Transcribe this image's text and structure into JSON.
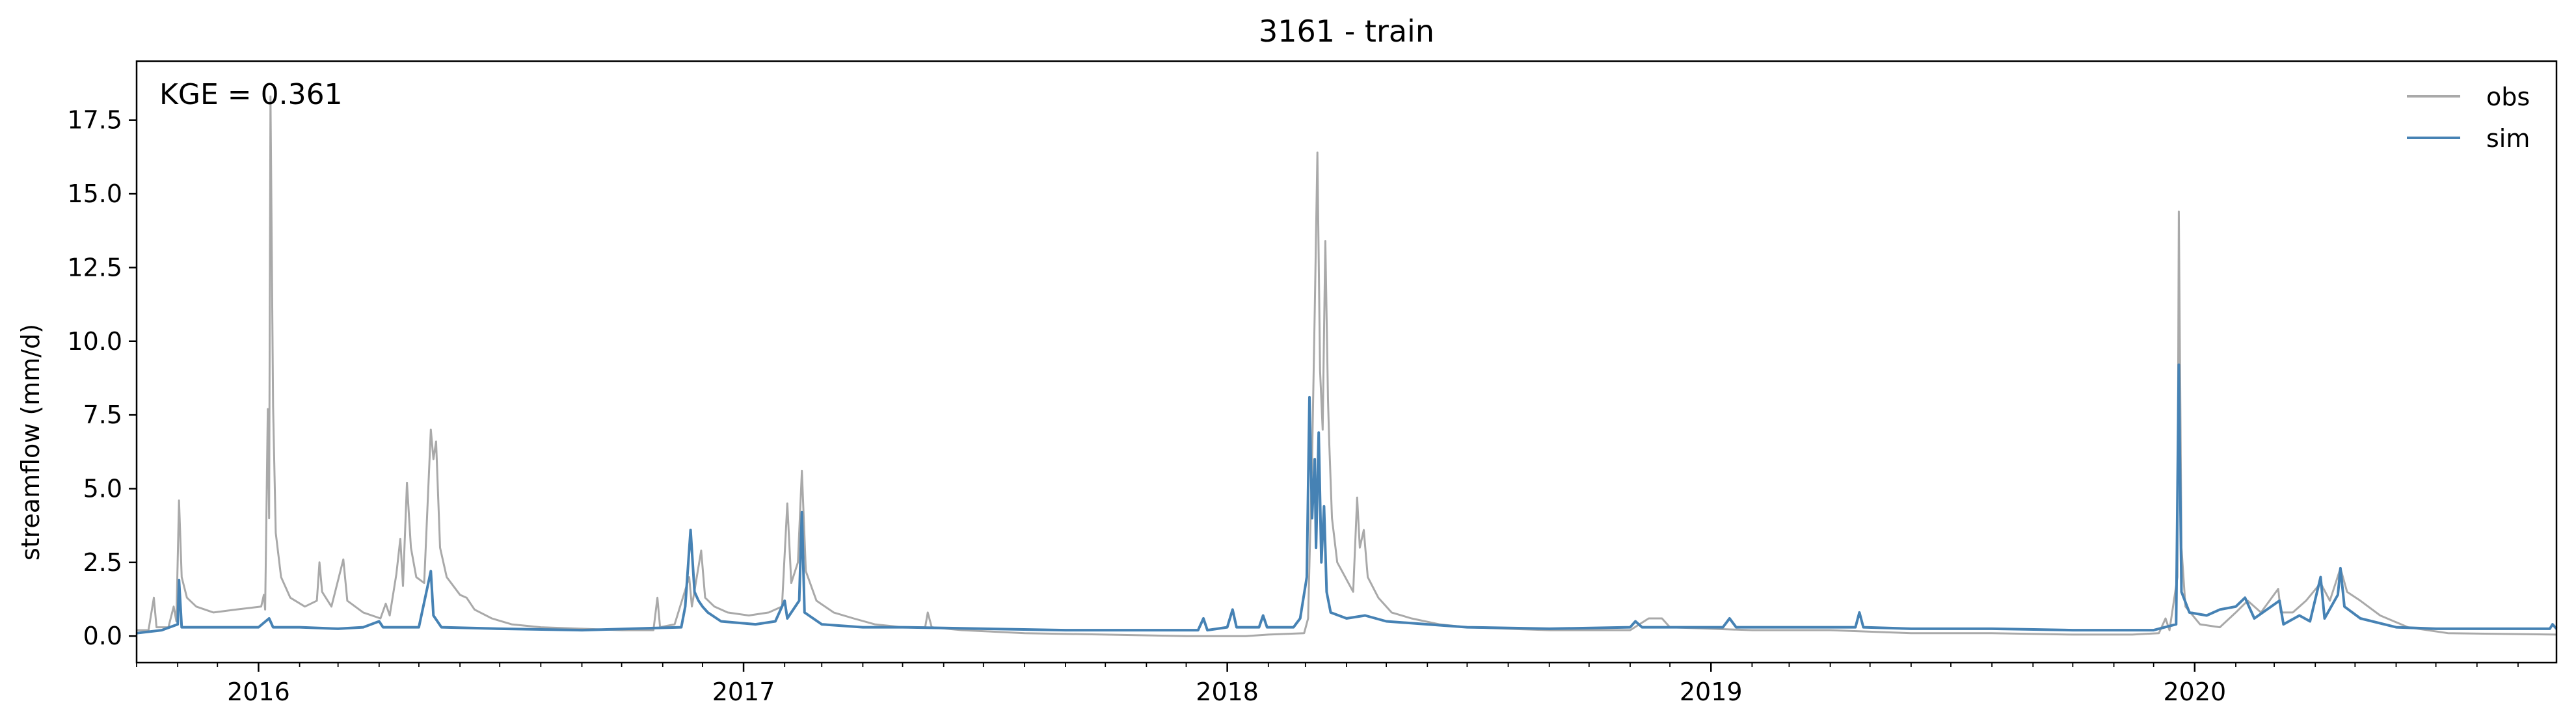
{
  "chart_data": {
    "type": "line",
    "title": "3161 - train",
    "xlabel": "",
    "ylabel": "streamflow (mm/d)",
    "annotation": "KGE = 0.361",
    "xlim": [
      "2015-10-01",
      "2020-09-30"
    ],
    "ylim": [
      -0.9,
      19.5
    ],
    "x_ticks": [
      "2016",
      "2017",
      "2018",
      "2019",
      "2020"
    ],
    "y_ticks": [
      "0.0",
      "2.5",
      "5.0",
      "7.5",
      "10.0",
      "12.5",
      "15.0",
      "17.5"
    ],
    "grid": false,
    "legend_position": "top-right",
    "legend": [
      "obs",
      "sim"
    ],
    "series": [
      {
        "name": "obs",
        "color": "#a9a9a9",
        "points": [
          [
            "2015-10-01",
            0.2
          ],
          [
            "2015-10-10",
            0.2
          ],
          [
            "2015-10-14",
            1.3
          ],
          [
            "2015-10-16",
            0.3
          ],
          [
            "2015-10-25",
            0.3
          ],
          [
            "2015-10-29",
            1.0
          ],
          [
            "2015-10-31",
            0.5
          ],
          [
            "2015-11-02",
            4.6
          ],
          [
            "2015-11-04",
            2.0
          ],
          [
            "2015-11-08",
            1.3
          ],
          [
            "2015-11-15",
            1.0
          ],
          [
            "2015-11-28",
            0.8
          ],
          [
            "2015-12-15",
            0.9
          ],
          [
            "2016-01-03",
            1.0
          ],
          [
            "2016-01-05",
            1.4
          ],
          [
            "2016-01-06",
            0.9
          ],
          [
            "2016-01-08",
            7.7
          ],
          [
            "2016-01-09",
            4.0
          ],
          [
            "2016-01-10",
            18.3
          ],
          [
            "2016-01-12",
            7.8
          ],
          [
            "2016-01-14",
            3.5
          ],
          [
            "2016-01-18",
            2.0
          ],
          [
            "2016-01-25",
            1.3
          ],
          [
            "2016-02-05",
            1.0
          ],
          [
            "2016-02-14",
            1.2
          ],
          [
            "2016-02-16",
            2.5
          ],
          [
            "2016-02-18",
            1.5
          ],
          [
            "2016-02-25",
            1.0
          ],
          [
            "2016-03-05",
            2.6
          ],
          [
            "2016-03-08",
            1.2
          ],
          [
            "2016-03-20",
            0.8
          ],
          [
            "2016-04-02",
            0.6
          ],
          [
            "2016-04-06",
            1.1
          ],
          [
            "2016-04-09",
            0.7
          ],
          [
            "2016-04-14",
            2.1
          ],
          [
            "2016-04-17",
            3.3
          ],
          [
            "2016-04-19",
            1.7
          ],
          [
            "2016-04-22",
            5.2
          ],
          [
            "2016-04-25",
            3.0
          ],
          [
            "2016-04-29",
            2.0
          ],
          [
            "2016-05-05",
            1.8
          ],
          [
            "2016-05-10",
            7.0
          ],
          [
            "2016-05-12",
            6.0
          ],
          [
            "2016-05-14",
            6.6
          ],
          [
            "2016-05-17",
            3.0
          ],
          [
            "2016-05-22",
            2.0
          ],
          [
            "2016-06-01",
            1.4
          ],
          [
            "2016-06-06",
            1.3
          ],
          [
            "2016-06-12",
            0.9
          ],
          [
            "2016-06-25",
            0.6
          ],
          [
            "2016-07-10",
            0.4
          ],
          [
            "2016-08-01",
            0.3
          ],
          [
            "2016-09-01",
            0.25
          ],
          [
            "2016-10-01",
            0.2
          ],
          [
            "2016-10-25",
            0.2
          ],
          [
            "2016-10-28",
            1.3
          ],
          [
            "2016-10-30",
            0.3
          ],
          [
            "2016-11-10",
            0.4
          ],
          [
            "2016-11-21",
            2.0
          ],
          [
            "2016-11-23",
            1.0
          ],
          [
            "2016-11-30",
            2.9
          ],
          [
            "2016-12-03",
            1.3
          ],
          [
            "2016-12-10",
            1.0
          ],
          [
            "2016-12-20",
            0.8
          ],
          [
            "2017-01-05",
            0.7
          ],
          [
            "2017-01-20",
            0.8
          ],
          [
            "2017-01-30",
            1.0
          ],
          [
            "2017-02-03",
            4.5
          ],
          [
            "2017-02-06",
            1.8
          ],
          [
            "2017-02-11",
            2.5
          ],
          [
            "2017-02-14",
            5.6
          ],
          [
            "2017-02-17",
            2.2
          ],
          [
            "2017-02-25",
            1.2
          ],
          [
            "2017-03-10",
            0.8
          ],
          [
            "2017-03-25",
            0.6
          ],
          [
            "2017-04-10",
            0.4
          ],
          [
            "2017-05-01",
            0.3
          ],
          [
            "2017-05-18",
            0.3
          ],
          [
            "2017-05-20",
            0.8
          ],
          [
            "2017-05-23",
            0.3
          ],
          [
            "2017-06-15",
            0.2
          ],
          [
            "2017-08-01",
            0.1
          ],
          [
            "2017-10-01",
            0.05
          ],
          [
            "2017-12-01",
            0.0
          ],
          [
            "2018-01-15",
            0.0
          ],
          [
            "2018-02-01",
            0.05
          ],
          [
            "2018-02-28",
            0.1
          ],
          [
            "2018-03-03",
            0.6
          ],
          [
            "2018-03-06",
            6.0
          ],
          [
            "2018-03-08",
            11.0
          ],
          [
            "2018-03-10",
            16.4
          ],
          [
            "2018-03-12",
            9.0
          ],
          [
            "2018-03-14",
            7.0
          ],
          [
            "2018-03-16",
            13.4
          ],
          [
            "2018-03-18",
            8.0
          ],
          [
            "2018-03-19",
            6.5
          ],
          [
            "2018-03-21",
            4.0
          ],
          [
            "2018-03-25",
            2.5
          ],
          [
            "2018-03-31",
            2.0
          ],
          [
            "2018-04-06",
            1.5
          ],
          [
            "2018-04-09",
            4.7
          ],
          [
            "2018-04-11",
            3.0
          ],
          [
            "2018-04-14",
            3.6
          ],
          [
            "2018-04-17",
            2.0
          ],
          [
            "2018-04-25",
            1.3
          ],
          [
            "2018-05-05",
            0.8
          ],
          [
            "2018-05-20",
            0.6
          ],
          [
            "2018-06-10",
            0.4
          ],
          [
            "2018-07-01",
            0.3
          ],
          [
            "2018-09-01",
            0.2
          ],
          [
            "2018-11-01",
            0.2
          ],
          [
            "2018-11-15",
            0.6
          ],
          [
            "2018-11-25",
            0.6
          ],
          [
            "2018-12-01",
            0.3
          ],
          [
            "2019-02-01",
            0.2
          ],
          [
            "2019-04-01",
            0.2
          ],
          [
            "2019-06-01",
            0.1
          ],
          [
            "2019-08-01",
            0.1
          ],
          [
            "2019-10-01",
            0.05
          ],
          [
            "2019-11-15",
            0.05
          ],
          [
            "2019-12-05",
            0.1
          ],
          [
            "2019-12-10",
            0.6
          ],
          [
            "2019-12-13",
            0.2
          ],
          [
            "2019-12-19",
            2.0
          ],
          [
            "2019-12-20",
            14.4
          ],
          [
            "2019-12-22",
            3.0
          ],
          [
            "2019-12-25",
            1.0
          ],
          [
            "2020-01-05",
            0.4
          ],
          [
            "2020-01-20",
            0.3
          ],
          [
            "2020-02-01",
            0.8
          ],
          [
            "2020-02-10",
            1.2
          ],
          [
            "2020-02-20",
            0.8
          ],
          [
            "2020-03-04",
            1.6
          ],
          [
            "2020-03-06",
            0.8
          ],
          [
            "2020-03-15",
            0.8
          ],
          [
            "2020-03-25",
            1.2
          ],
          [
            "2020-04-05",
            1.8
          ],
          [
            "2020-04-12",
            1.2
          ],
          [
            "2020-04-20",
            2.3
          ],
          [
            "2020-04-25",
            1.5
          ],
          [
            "2020-05-05",
            1.2
          ],
          [
            "2020-05-20",
            0.7
          ],
          [
            "2020-06-10",
            0.3
          ],
          [
            "2020-07-10",
            0.1
          ],
          [
            "2020-09-30",
            0.05
          ]
        ]
      },
      {
        "name": "sim",
        "color": "#4682b4",
        "points": [
          [
            "2015-10-01",
            0.1
          ],
          [
            "2015-10-20",
            0.2
          ],
          [
            "2015-11-01",
            0.4
          ],
          [
            "2015-11-02",
            1.9
          ],
          [
            "2015-11-04",
            0.3
          ],
          [
            "2015-11-20",
            0.3
          ],
          [
            "2015-12-15",
            0.3
          ],
          [
            "2016-01-01",
            0.3
          ],
          [
            "2016-01-09",
            0.6
          ],
          [
            "2016-01-12",
            0.3
          ],
          [
            "2016-02-01",
            0.3
          ],
          [
            "2016-03-01",
            0.25
          ],
          [
            "2016-03-20",
            0.3
          ],
          [
            "2016-04-01",
            0.5
          ],
          [
            "2016-04-04",
            0.3
          ],
          [
            "2016-04-15",
            0.3
          ],
          [
            "2016-05-01",
            0.3
          ],
          [
            "2016-05-10",
            2.2
          ],
          [
            "2016-05-12",
            0.7
          ],
          [
            "2016-05-18",
            0.3
          ],
          [
            "2016-07-01",
            0.25
          ],
          [
            "2016-09-01",
            0.2
          ],
          [
            "2016-11-15",
            0.3
          ],
          [
            "2016-11-18",
            1.0
          ],
          [
            "2016-11-22",
            3.6
          ],
          [
            "2016-11-25",
            1.5
          ],
          [
            "2016-11-28",
            1.2
          ],
          [
            "2016-12-01",
            1.0
          ],
          [
            "2016-12-05",
            0.8
          ],
          [
            "2016-12-15",
            0.5
          ],
          [
            "2017-01-10",
            0.4
          ],
          [
            "2017-01-25",
            0.5
          ],
          [
            "2017-02-01",
            1.2
          ],
          [
            "2017-02-03",
            0.6
          ],
          [
            "2017-02-12",
            1.2
          ],
          [
            "2017-02-14",
            4.2
          ],
          [
            "2017-02-16",
            0.8
          ],
          [
            "2017-03-01",
            0.4
          ],
          [
            "2017-04-01",
            0.3
          ],
          [
            "2017-05-01",
            0.3
          ],
          [
            "2017-07-01",
            0.25
          ],
          [
            "2017-09-01",
            0.2
          ],
          [
            "2017-11-01",
            0.2
          ],
          [
            "2017-12-10",
            0.2
          ],
          [
            "2017-12-14",
            0.6
          ],
          [
            "2017-12-17",
            0.2
          ],
          [
            "2018-01-01",
            0.3
          ],
          [
            "2018-01-05",
            0.9
          ],
          [
            "2018-01-08",
            0.3
          ],
          [
            "2018-01-25",
            0.3
          ],
          [
            "2018-01-28",
            0.7
          ],
          [
            "2018-01-31",
            0.3
          ],
          [
            "2018-02-20",
            0.3
          ],
          [
            "2018-02-25",
            0.6
          ],
          [
            "2018-03-02",
            2.0
          ],
          [
            "2018-03-04",
            8.1
          ],
          [
            "2018-03-06",
            4.0
          ],
          [
            "2018-03-08",
            6.0
          ],
          [
            "2018-03-09",
            3.0
          ],
          [
            "2018-03-11",
            6.9
          ],
          [
            "2018-03-13",
            2.5
          ],
          [
            "2018-03-15",
            4.4
          ],
          [
            "2018-03-17",
            1.5
          ],
          [
            "2018-03-20",
            0.8
          ],
          [
            "2018-04-01",
            0.6
          ],
          [
            "2018-04-15",
            0.7
          ],
          [
            "2018-05-01",
            0.5
          ],
          [
            "2018-06-01",
            0.4
          ],
          [
            "2018-07-01",
            0.3
          ],
          [
            "2018-09-01",
            0.25
          ],
          [
            "2018-11-01",
            0.3
          ],
          [
            "2018-11-05",
            0.5
          ],
          [
            "2018-11-10",
            0.3
          ],
          [
            "2019-01-10",
            0.3
          ],
          [
            "2019-01-15",
            0.6
          ],
          [
            "2019-01-20",
            0.3
          ],
          [
            "2019-04-20",
            0.3
          ],
          [
            "2019-04-23",
            0.8
          ],
          [
            "2019-04-26",
            0.3
          ],
          [
            "2019-06-01",
            0.25
          ],
          [
            "2019-08-01",
            0.25
          ],
          [
            "2019-10-01",
            0.2
          ],
          [
            "2019-12-01",
            0.2
          ],
          [
            "2019-12-18",
            0.4
          ],
          [
            "2019-12-20",
            9.2
          ],
          [
            "2019-12-22",
            1.5
          ],
          [
            "2019-12-28",
            0.8
          ],
          [
            "2020-01-10",
            0.7
          ],
          [
            "2020-01-20",
            0.9
          ],
          [
            "2020-02-01",
            1.0
          ],
          [
            "2020-02-08",
            1.3
          ],
          [
            "2020-02-15",
            0.6
          ],
          [
            "2020-03-05",
            1.2
          ],
          [
            "2020-03-08",
            0.4
          ],
          [
            "2020-03-20",
            0.7
          ],
          [
            "2020-03-28",
            0.5
          ],
          [
            "2020-04-05",
            2.0
          ],
          [
            "2020-04-08",
            0.6
          ],
          [
            "2020-04-18",
            1.4
          ],
          [
            "2020-04-20",
            2.3
          ],
          [
            "2020-04-23",
            1.0
          ],
          [
            "2020-05-05",
            0.6
          ],
          [
            "2020-06-01",
            0.3
          ],
          [
            "2020-07-01",
            0.25
          ],
          [
            "2020-09-25",
            0.25
          ],
          [
            "2020-09-27",
            0.4
          ],
          [
            "2020-09-30",
            0.25
          ]
        ]
      }
    ]
  }
}
